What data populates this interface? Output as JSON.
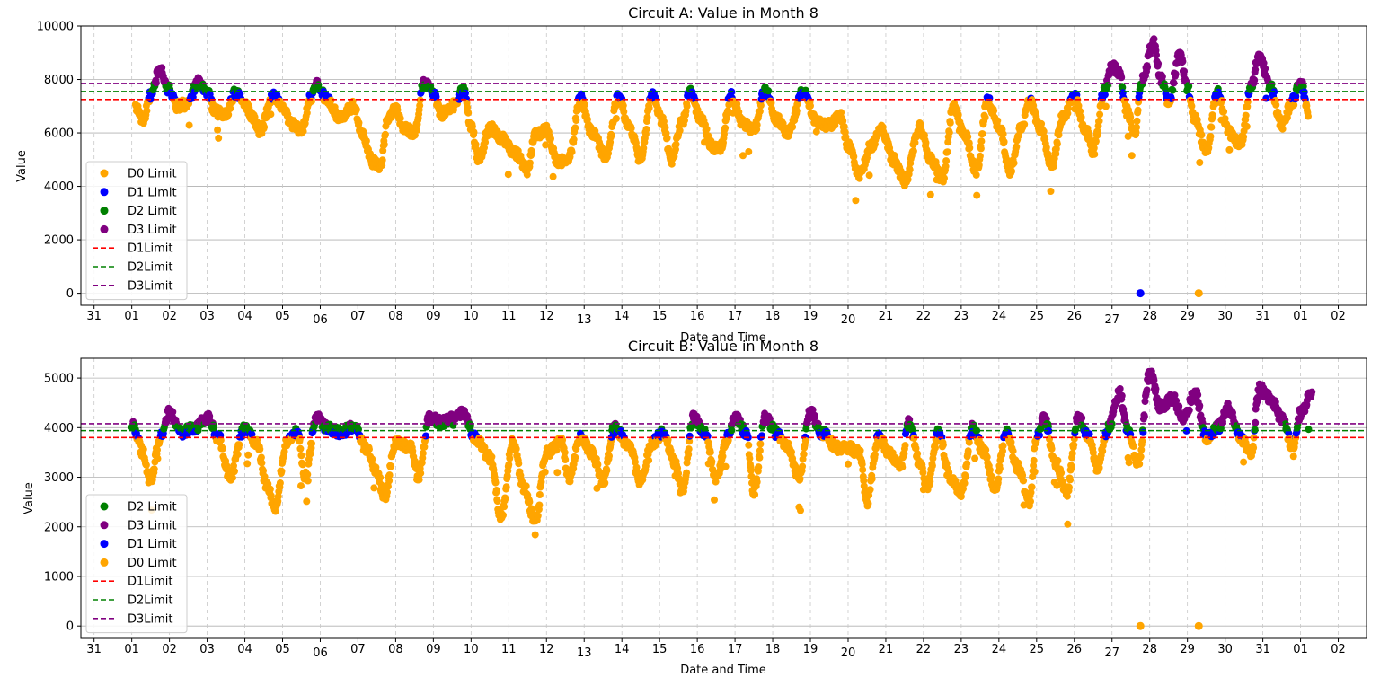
{
  "colors": {
    "D0": "#ffa500",
    "D1": "#0000ff",
    "D2": "#008000",
    "D3": "#800080",
    "D1Limit": "#ff0000",
    "D2Limit": "#008000",
    "D3Limit": "#800080",
    "grid": "#b0b0b0",
    "vgrid": "#c8c8c8"
  },
  "chart_data": [
    {
      "type": "scatter",
      "title": "Circuit A: Value in Month 8",
      "xlabel": "Date and Time",
      "ylabel": "Value",
      "ylim": [
        -450,
        10000
      ],
      "yticks": [
        0,
        2000,
        4000,
        6000,
        8000,
        10000
      ],
      "xlim": [
        -0.35,
        33.75
      ],
      "xticks": [
        "31",
        "01",
        "02",
        "03",
        "04",
        "05",
        "06",
        "07",
        "08",
        "09",
        "10",
        "11",
        "12",
        "13",
        "14",
        "15",
        "16",
        "17",
        "18",
        "19",
        "20",
        "21",
        "22",
        "23",
        "24",
        "25",
        "26",
        "27",
        "28",
        "29",
        "30",
        "31",
        "01",
        "02"
      ],
      "grid": "horizontal solid, vertical dashed",
      "legend_position": "center-left",
      "legend_order": [
        "D0 Limit",
        "D1 Limit",
        "D2 Limit",
        "D3 Limit",
        "D1Limit",
        "D2Limit",
        "D3Limit"
      ],
      "limits": [
        {
          "name": "D1Limit",
          "value": 7250,
          "color_key": "D1Limit"
        },
        {
          "name": "D2Limit",
          "value": 7550,
          "color_key": "D2Limit"
        },
        {
          "name": "D3Limit",
          "value": 7850,
          "color_key": "D3Limit"
        }
      ],
      "series": [
        {
          "name": "D0 Limit",
          "color_key": "D0"
        },
        {
          "name": "D1 Limit",
          "color_key": "D1"
        },
        {
          "name": "D2 Limit",
          "color_key": "D2"
        },
        {
          "name": "D3 Limit",
          "color_key": "D3"
        }
      ],
      "x_start": 1.1,
      "x_end": 32.2,
      "profile": [
        [
          1.1,
          7000
        ],
        [
          1.3,
          6500
        ],
        [
          1.5,
          7400
        ],
        [
          1.75,
          8400
        ],
        [
          2.0,
          7600
        ],
        [
          2.2,
          7000
        ],
        [
          2.5,
          7100
        ],
        [
          2.75,
          7900
        ],
        [
          3.0,
          7500
        ],
        [
          3.2,
          6800
        ],
        [
          3.5,
          6700
        ],
        [
          3.75,
          7500
        ],
        [
          4.0,
          7100
        ],
        [
          4.2,
          6600
        ],
        [
          4.4,
          6100
        ],
        [
          4.75,
          7400
        ],
        [
          5.0,
          7000
        ],
        [
          5.25,
          6300
        ],
        [
          5.5,
          6100
        ],
        [
          5.75,
          7300
        ],
        [
          5.9,
          7900
        ],
        [
          6.2,
          7200
        ],
        [
          6.5,
          6600
        ],
        [
          6.9,
          7000
        ],
        [
          7.1,
          6000
        ],
        [
          7.4,
          4900
        ],
        [
          7.6,
          4800
        ],
        [
          7.8,
          6600
        ],
        [
          8.0,
          6900
        ],
        [
          8.2,
          6200
        ],
        [
          8.5,
          6000
        ],
        [
          8.75,
          7900
        ],
        [
          9.0,
          7500
        ],
        [
          9.2,
          6700
        ],
        [
          9.5,
          7000
        ],
        [
          9.8,
          7600
        ],
        [
          10.0,
          6300
        ],
        [
          10.2,
          5000
        ],
        [
          10.5,
          6200
        ],
        [
          10.8,
          5800
        ],
        [
          11.2,
          5200
        ],
        [
          11.5,
          4600
        ],
        [
          11.7,
          5900
        ],
        [
          12.0,
          6100
        ],
        [
          12.3,
          4900
        ],
        [
          12.6,
          5100
        ],
        [
          12.9,
          7300
        ],
        [
          13.2,
          6000
        ],
        [
          13.6,
          5100
        ],
        [
          13.9,
          7400
        ],
        [
          14.2,
          6200
        ],
        [
          14.5,
          5000
        ],
        [
          14.8,
          7400
        ],
        [
          15.1,
          6400
        ],
        [
          15.3,
          5000
        ],
        [
          15.6,
          6400
        ],
        [
          15.8,
          7500
        ],
        [
          16.1,
          6500
        ],
        [
          16.4,
          5500
        ],
        [
          16.6,
          5400
        ],
        [
          16.9,
          7400
        ],
        [
          17.2,
          6400
        ],
        [
          17.5,
          6100
        ],
        [
          17.8,
          7600
        ],
        [
          18.1,
          6500
        ],
        [
          18.4,
          6000
        ],
        [
          18.8,
          7500
        ],
        [
          19.2,
          6400
        ],
        [
          19.5,
          6300
        ],
        [
          19.8,
          6600
        ],
        [
          20.0,
          5500
        ],
        [
          20.3,
          4400
        ],
        [
          20.6,
          5500
        ],
        [
          20.9,
          6100
        ],
        [
          21.2,
          5000
        ],
        [
          21.5,
          4200
        ],
        [
          21.9,
          6200
        ],
        [
          22.2,
          5000
        ],
        [
          22.5,
          4300
        ],
        [
          22.8,
          7000
        ],
        [
          23.1,
          5900
        ],
        [
          23.4,
          4600
        ],
        [
          23.7,
          7200
        ],
        [
          24.0,
          6300
        ],
        [
          24.3,
          4600
        ],
        [
          24.6,
          6200
        ],
        [
          24.8,
          7200
        ],
        [
          25.1,
          6200
        ],
        [
          25.4,
          4800
        ],
        [
          25.7,
          6600
        ],
        [
          26.0,
          7400
        ],
        [
          26.3,
          6100
        ],
        [
          26.5,
          5300
        ],
        [
          26.8,
          7600
        ],
        [
          27.0,
          8500
        ],
        [
          27.2,
          8200
        ],
        [
          27.4,
          6800
        ],
        [
          27.6,
          6000
        ],
        [
          27.8,
          8000
        ],
        [
          28.1,
          9400
        ],
        [
          28.3,
          8000
        ],
        [
          28.5,
          7200
        ],
        [
          28.8,
          8900
        ],
        [
          29.0,
          7700
        ],
        [
          29.2,
          6500
        ],
        [
          29.5,
          5300
        ],
        [
          29.8,
          7500
        ],
        [
          30.1,
          6000
        ],
        [
          30.4,
          5600
        ],
        [
          30.7,
          7800
        ],
        [
          30.9,
          8900
        ],
        [
          31.2,
          7700
        ],
        [
          31.5,
          6300
        ],
        [
          31.8,
          7200
        ],
        [
          32.0,
          7900
        ],
        [
          32.2,
          6800
        ]
      ],
      "outliers": [
        {
          "x": 27.75,
          "y": 0,
          "color_key": "D1"
        },
        {
          "x": 29.3,
          "y": 0,
          "color_key": "D0"
        }
      ]
    },
    {
      "type": "scatter",
      "title": "Circuit B: Value in Month 8",
      "xlabel": "Date and Time",
      "ylabel": "Value",
      "ylim": [
        -250,
        5400
      ],
      "yticks": [
        0,
        1000,
        2000,
        3000,
        4000,
        5000
      ],
      "xlim": [
        -0.35,
        33.75
      ],
      "xticks": [
        "31",
        "01",
        "02",
        "03",
        "04",
        "05",
        "06",
        "07",
        "08",
        "09",
        "10",
        "11",
        "12",
        "13",
        "14",
        "15",
        "16",
        "17",
        "18",
        "19",
        "20",
        "21",
        "22",
        "23",
        "24",
        "25",
        "26",
        "27",
        "28",
        "29",
        "30",
        "31",
        "01",
        "02"
      ],
      "grid": "horizontal solid, vertical dashed",
      "legend_position": "center-left",
      "legend_order": [
        "D2 Limit",
        "D3 Limit",
        "D1 Limit",
        "D0 Limit",
        "D1Limit",
        "D2Limit",
        "D3Limit"
      ],
      "limits": [
        {
          "name": "D1Limit",
          "value": 3800,
          "color_key": "D1Limit"
        },
        {
          "name": "D2Limit",
          "value": 3940,
          "color_key": "D2Limit"
        },
        {
          "name": "D3Limit",
          "value": 4080,
          "color_key": "D3Limit"
        }
      ],
      "series": [
        {
          "name": "D2 Limit",
          "color_key": "D2"
        },
        {
          "name": "D3 Limit",
          "color_key": "D3"
        },
        {
          "name": "D1 Limit",
          "color_key": "D1"
        },
        {
          "name": "D0 Limit",
          "color_key": "D0"
        }
      ],
      "x_start": 1.0,
      "x_end": 32.3,
      "profile": [
        [
          1.0,
          4100
        ],
        [
          1.3,
          3500
        ],
        [
          1.5,
          2900
        ],
        [
          1.75,
          3800
        ],
        [
          2.0,
          4300
        ],
        [
          2.3,
          3900
        ],
        [
          2.7,
          4000
        ],
        [
          3.0,
          4200
        ],
        [
          3.3,
          3800
        ],
        [
          3.6,
          3000
        ],
        [
          4.0,
          4000
        ],
        [
          4.3,
          3700
        ],
        [
          4.6,
          2800
        ],
        [
          4.8,
          2400
        ],
        [
          5.1,
          3700
        ],
        [
          5.4,
          3900
        ],
        [
          5.6,
          3000
        ],
        [
          5.9,
          4200
        ],
        [
          6.2,
          4000
        ],
        [
          6.5,
          3900
        ],
        [
          6.9,
          4000
        ],
        [
          7.2,
          3600
        ],
        [
          7.5,
          3100
        ],
        [
          7.7,
          2600
        ],
        [
          8.0,
          3700
        ],
        [
          8.4,
          3600
        ],
        [
          8.6,
          3000
        ],
        [
          8.9,
          4200
        ],
        [
          9.2,
          4100
        ],
        [
          9.5,
          4200
        ],
        [
          9.8,
          4300
        ],
        [
          10.1,
          3800
        ],
        [
          10.5,
          3400
        ],
        [
          10.8,
          2200
        ],
        [
          11.1,
          3700
        ],
        [
          11.4,
          2800
        ],
        [
          11.7,
          2100
        ],
        [
          12.0,
          3500
        ],
        [
          12.4,
          3700
        ],
        [
          12.6,
          3000
        ],
        [
          12.9,
          3800
        ],
        [
          13.2,
          3500
        ],
        [
          13.5,
          2900
        ],
        [
          13.8,
          4000
        ],
        [
          14.2,
          3600
        ],
        [
          14.5,
          2900
        ],
        [
          14.8,
          3700
        ],
        [
          15.1,
          3900
        ],
        [
          15.4,
          3300
        ],
        [
          15.6,
          2700
        ],
        [
          15.9,
          4200
        ],
        [
          16.2,
          3900
        ],
        [
          16.5,
          3000
        ],
        [
          16.8,
          3800
        ],
        [
          17.0,
          4200
        ],
        [
          17.3,
          3900
        ],
        [
          17.5,
          2700
        ],
        [
          17.8,
          4200
        ],
        [
          18.1,
          3900
        ],
        [
          18.4,
          3600
        ],
        [
          18.7,
          3000
        ],
        [
          19.0,
          4300
        ],
        [
          19.3,
          3900
        ],
        [
          19.7,
          3600
        ],
        [
          20.0,
          3600
        ],
        [
          20.3,
          3500
        ],
        [
          20.5,
          2500
        ],
        [
          20.8,
          3800
        ],
        [
          21.1,
          3500
        ],
        [
          21.4,
          3200
        ],
        [
          21.6,
          4100
        ],
        [
          21.9,
          3300
        ],
        [
          22.1,
          2800
        ],
        [
          22.4,
          3900
        ],
        [
          22.7,
          3000
        ],
        [
          23.0,
          2700
        ],
        [
          23.3,
          4000
        ],
        [
          23.6,
          3500
        ],
        [
          23.9,
          2800
        ],
        [
          24.2,
          3900
        ],
        [
          24.5,
          3200
        ],
        [
          24.8,
          2500
        ],
        [
          25.0,
          3800
        ],
        [
          25.2,
          4200
        ],
        [
          25.5,
          3300
        ],
        [
          25.8,
          2700
        ],
        [
          26.1,
          4200
        ],
        [
          26.4,
          3800
        ],
        [
          26.6,
          3200
        ],
        [
          26.9,
          4000
        ],
        [
          27.2,
          4700
        ],
        [
          27.4,
          4000
        ],
        [
          27.7,
          3300
        ],
        [
          28.0,
          5100
        ],
        [
          28.3,
          4400
        ],
        [
          28.6,
          4600
        ],
        [
          28.9,
          4200
        ],
        [
          29.2,
          4700
        ],
        [
          29.5,
          3800
        ],
        [
          29.8,
          4000
        ],
        [
          30.1,
          4400
        ],
        [
          30.4,
          3800
        ],
        [
          30.7,
          3500
        ],
        [
          30.9,
          4800
        ],
        [
          31.2,
          4600
        ],
        [
          31.5,
          4200
        ],
        [
          31.8,
          3600
        ],
        [
          32.0,
          4300
        ],
        [
          32.3,
          4700
        ]
      ],
      "outliers": [
        {
          "x": 27.75,
          "y": 0,
          "color_key": "D0"
        },
        {
          "x": 29.3,
          "y": 0,
          "color_key": "D0"
        }
      ]
    }
  ]
}
